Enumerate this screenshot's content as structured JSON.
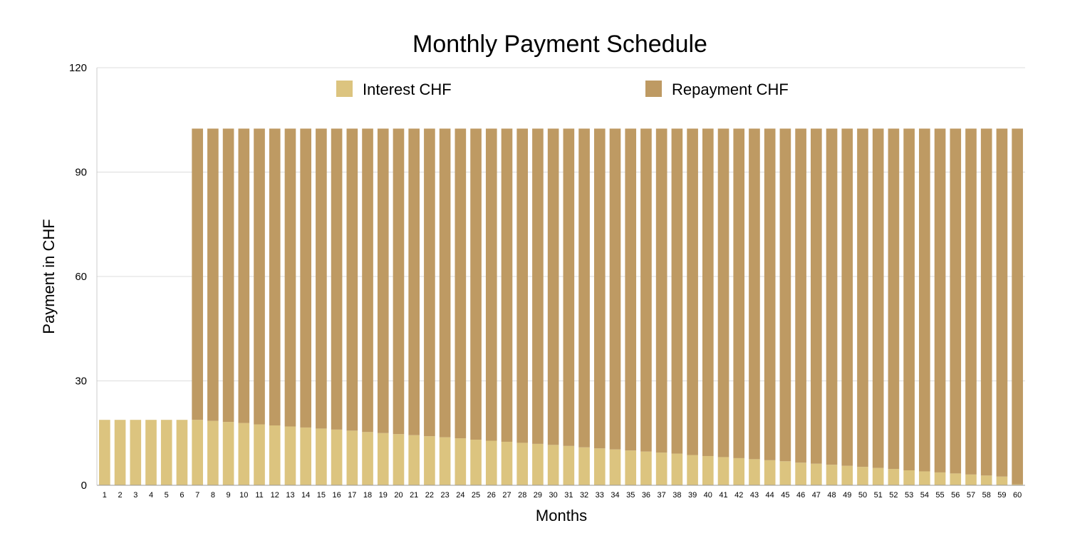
{
  "chart_data": {
    "type": "bar",
    "stacked": true,
    "title": "Monthly Payment Schedule",
    "xlabel": "Months",
    "ylabel": "Payment  in CHF",
    "ylim": [
      0,
      120
    ],
    "yticks": [
      "0",
      "30",
      "60",
      "90",
      "120"
    ],
    "grid": true,
    "legend_position": "top",
    "categories": [
      "1",
      "2",
      "3",
      "4",
      "5",
      "6",
      "7",
      "8",
      "9",
      "10",
      "11",
      "12",
      "13",
      "14",
      "15",
      "16",
      "17",
      "18",
      "19",
      "20",
      "21",
      "22",
      "23",
      "24",
      "25",
      "26",
      "27",
      "28",
      "29",
      "30",
      "31",
      "32",
      "33",
      "34",
      "35",
      "36",
      "37",
      "38",
      "39",
      "40",
      "41",
      "42",
      "43",
      "44",
      "45",
      "46",
      "47",
      "48",
      "49",
      "50",
      "51",
      "52",
      "53",
      "54",
      "55",
      "56",
      "57",
      "58",
      "59",
      "60"
    ],
    "series": [
      {
        "name": "Interest CHF",
        "color": "#DCC47F",
        "values": [
          18.8,
          18.8,
          18.8,
          18.8,
          18.8,
          18.8,
          18.8,
          18.5,
          18.2,
          17.9,
          17.5,
          17.2,
          16.9,
          16.6,
          16.3,
          16.0,
          15.7,
          15.3,
          15.0,
          14.7,
          14.4,
          14.1,
          13.8,
          13.5,
          13.1,
          12.8,
          12.5,
          12.2,
          11.9,
          11.6,
          11.3,
          10.9,
          10.6,
          10.3,
          10.0,
          9.7,
          9.4,
          9.1,
          8.7,
          8.4,
          8.1,
          7.8,
          7.5,
          7.2,
          6.9,
          6.5,
          6.2,
          5.9,
          5.6,
          5.3,
          5.0,
          4.7,
          4.3,
          4.0,
          3.7,
          3.4,
          3.1,
          2.8,
          2.5,
          0.3
        ]
      },
      {
        "name": "Repayment CHF",
        "color": "#BE9A63",
        "values": [
          0,
          0,
          0,
          0,
          0,
          0,
          83.7,
          84.0,
          84.3,
          84.6,
          85.0,
          85.3,
          85.6,
          85.9,
          86.2,
          86.5,
          86.8,
          87.2,
          87.5,
          87.8,
          88.1,
          88.4,
          88.7,
          89.0,
          89.4,
          89.7,
          90.0,
          90.3,
          90.6,
          90.9,
          91.2,
          91.6,
          91.9,
          92.2,
          92.5,
          92.8,
          93.1,
          93.4,
          93.8,
          94.1,
          94.4,
          94.7,
          95.0,
          95.3,
          95.6,
          96.0,
          96.3,
          96.6,
          96.9,
          97.2,
          97.5,
          97.8,
          98.2,
          98.5,
          98.8,
          99.1,
          99.4,
          99.7,
          100.0,
          102.2
        ]
      }
    ],
    "colors": {
      "grid": "#DDDDDD",
      "axis": "#999999"
    }
  }
}
